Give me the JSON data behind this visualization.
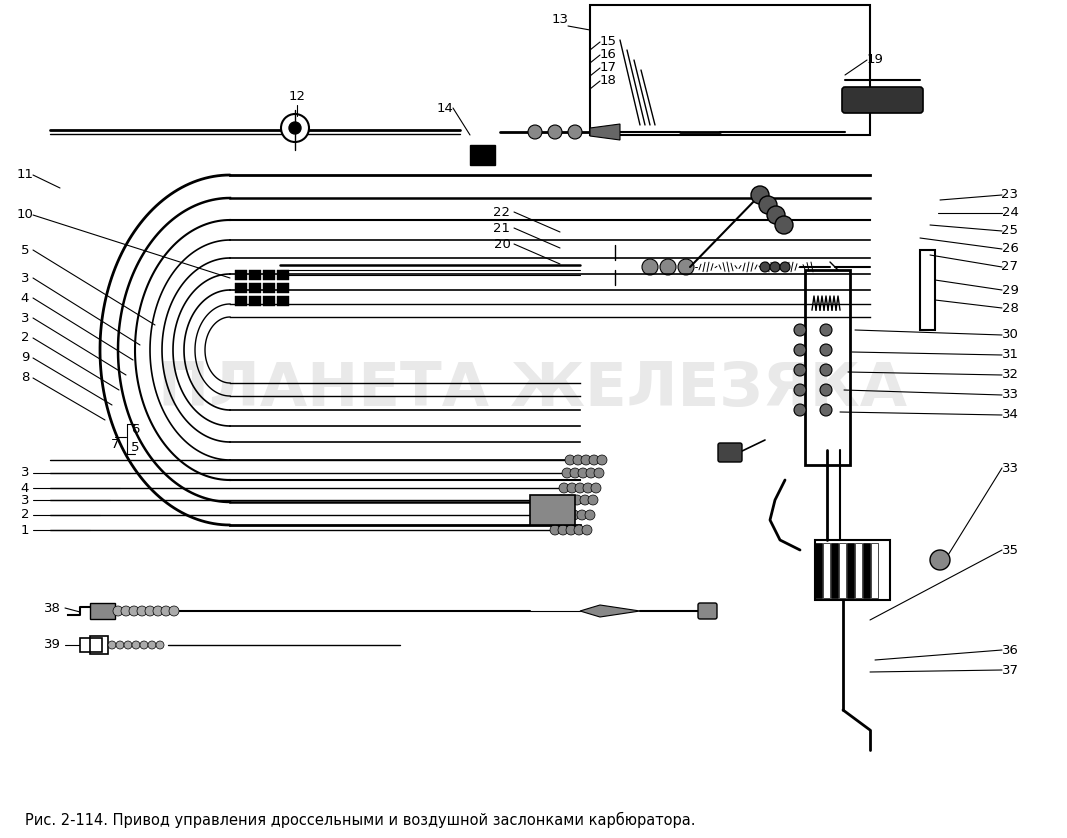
{
  "caption": "Рис. 2-114. Привод управления дроссельными и воздушной заслонками карбюратора.",
  "caption_fontsize": 10.5,
  "bg_color": "#ffffff",
  "fig_width": 10.67,
  "fig_height": 8.38,
  "dpi": 100,
  "watermark_text": "ПЛАНЕТА ЖЕЛЕЗЯКА",
  "watermark_color": "#c0c0c0",
  "watermark_alpha": 0.35,
  "watermark_fontsize": 44,
  "line_color": "#000000",
  "label_fontsize": 9.5,
  "diagram_xlim": [
    0,
    1067
  ],
  "diagram_ylim": [
    0,
    838
  ]
}
